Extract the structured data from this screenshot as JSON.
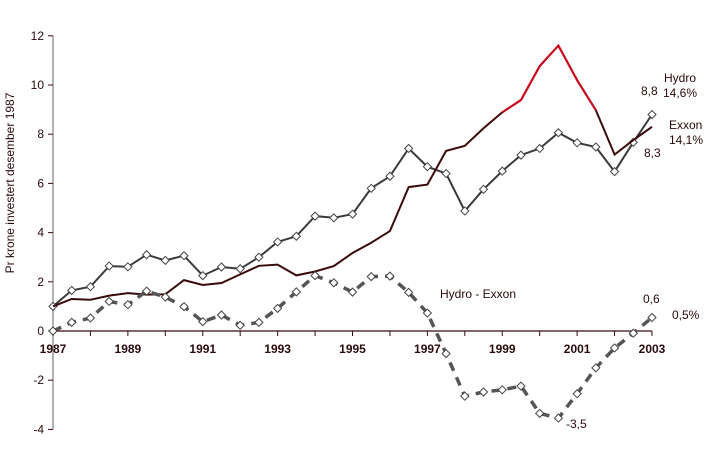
{
  "chart_data": {
    "type": "line",
    "title": "",
    "xlabel": "",
    "ylabel": "Pr krone investert desember 1987",
    "xlim": [
      1987,
      2003
    ],
    "ylim": [
      -4,
      12
    ],
    "x_ticks": [
      "1987",
      "1989",
      "1991",
      "1993",
      "1995",
      "1997",
      "1999",
      "2001",
      "2003"
    ],
    "y_ticks": [
      -4,
      -2,
      0,
      2,
      4,
      6,
      8,
      10,
      12
    ],
    "grid": false,
    "x": [
      1987,
      1987.5,
      1988,
      1988.5,
      1989,
      1989.5,
      1990,
      1990.5,
      1991,
      1991.5,
      1992,
      1992.5,
      1993,
      1993.5,
      1994,
      1994.5,
      1995,
      1995.5,
      1996,
      1996.5,
      1997,
      1997.5,
      1998,
      1998.5,
      1999,
      1999.5,
      2000,
      2000.5,
      2001,
      2001.5,
      2002,
      2002.5,
      2003
    ],
    "series": [
      {
        "name": "Hydro",
        "color": "#3a3a3a",
        "marker": "diamond",
        "values": [
          1.0,
          1.65,
          1.8,
          2.64,
          2.61,
          3.1,
          2.87,
          3.06,
          2.25,
          2.6,
          2.53,
          3.0,
          3.62,
          3.85,
          4.67,
          4.6,
          4.75,
          5.8,
          6.29,
          7.42,
          6.68,
          6.4,
          4.88,
          5.76,
          6.5,
          7.15,
          7.42,
          8.06,
          7.65,
          7.48,
          6.48,
          7.67,
          8.8
        ]
      },
      {
        "name": "Exxon",
        "color": "#3b0a0a",
        "highlight_color": "#d0021b",
        "highlight_range": [
          1999,
          2001.5
        ],
        "marker": "none",
        "values": [
          1.0,
          1.3,
          1.27,
          1.44,
          1.54,
          1.48,
          1.49,
          2.07,
          1.87,
          1.95,
          2.3,
          2.65,
          2.7,
          2.26,
          2.42,
          2.64,
          3.17,
          3.59,
          4.06,
          5.85,
          5.95,
          7.32,
          7.53,
          8.24,
          8.89,
          9.39,
          10.77,
          11.6,
          10.2,
          8.98,
          7.17,
          7.76,
          8.3
        ]
      },
      {
        "name": "Hydro - Exxon",
        "color": "#555555",
        "marker": "diamond",
        "style": "dashed",
        "values": [
          0,
          0.35,
          0.53,
          1.2,
          1.07,
          1.62,
          1.38,
          0.99,
          0.38,
          0.65,
          0.23,
          0.35,
          0.92,
          1.59,
          2.25,
          1.96,
          1.58,
          2.21,
          2.23,
          1.57,
          0.73,
          -0.92,
          -2.65,
          -2.48,
          -2.39,
          -2.24,
          -3.35,
          -3.54,
          -2.55,
          -1.5,
          -0.69,
          -0.09,
          0.55
        ]
      }
    ],
    "annotations": {
      "hydro_name": "Hydro",
      "hydro_pct": "14,6%",
      "hydro_end": "8,8",
      "exxon_name": "Exxon",
      "exxon_pct": "14,1%",
      "exxon_end": "8,3",
      "diff_name": "Hydro - Exxon",
      "diff_end": "0,6",
      "diff_pct": "0,5%",
      "diff_min": "-3,5"
    }
  }
}
